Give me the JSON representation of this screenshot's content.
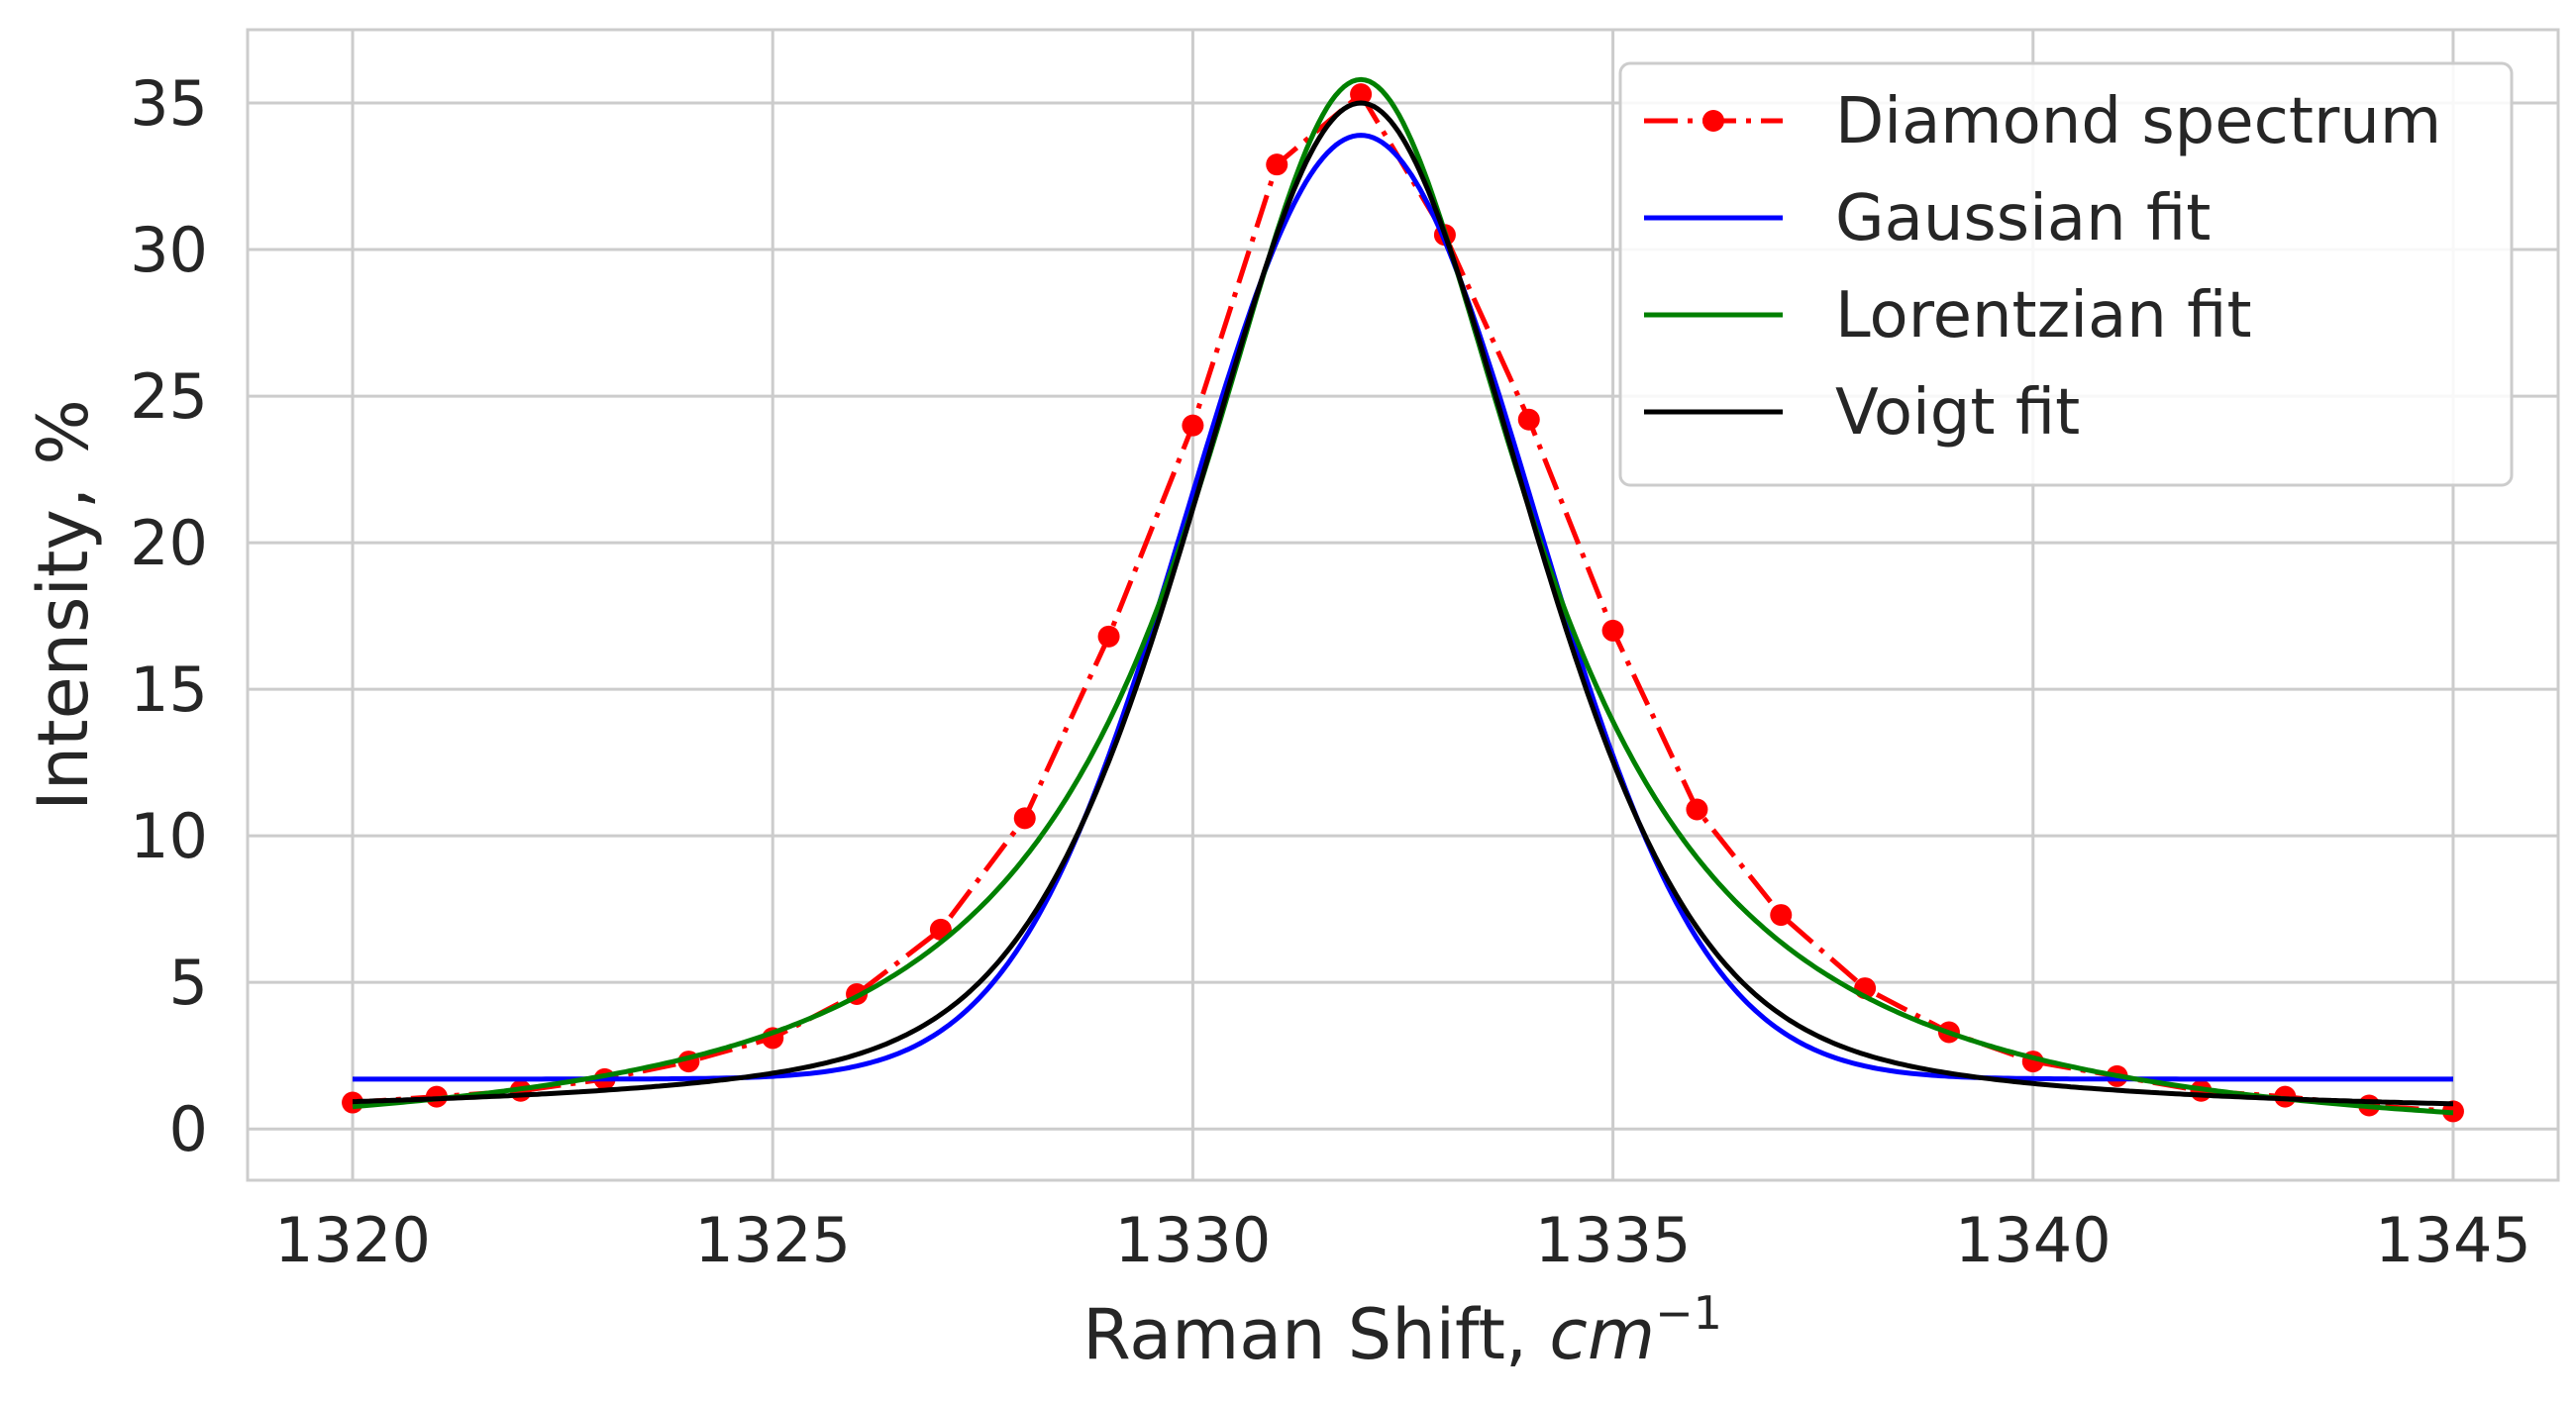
{
  "chart_data": {
    "type": "line",
    "xlabel": "Raman Shift, ",
    "xlabel_unit": "cm",
    "xlabel_exponent": "−1",
    "ylabel": "Intensity, %",
    "xlim": [
      1318.75,
      1346.25
    ],
    "ylim": [
      -1.75,
      37.5
    ],
    "xticks": [
      1320,
      1325,
      1330,
      1335,
      1340,
      1345
    ],
    "yticks": [
      0,
      5,
      10,
      15,
      20,
      25,
      30,
      35
    ],
    "grid": true,
    "legend_position": "top-right",
    "series": [
      {
        "name": "Diamond spectrum",
        "color": "#ff0000",
        "style": "dash-dot-markers",
        "x": [
          1320,
          1321,
          1322,
          1323,
          1324,
          1325,
          1326,
          1327,
          1328,
          1329,
          1330,
          1331,
          1332,
          1333,
          1334,
          1335,
          1336,
          1337,
          1338,
          1339,
          1340,
          1341,
          1342,
          1343,
          1344,
          1345
        ],
        "y": [
          0.9,
          1.1,
          1.3,
          1.7,
          2.3,
          3.1,
          4.6,
          6.8,
          10.6,
          16.8,
          24.0,
          32.9,
          35.3,
          30.5,
          24.2,
          17.0,
          10.9,
          7.3,
          4.8,
          3.3,
          2.3,
          1.8,
          1.3,
          1.1,
          0.8,
          0.6
        ]
      },
      {
        "name": "Gaussian fit",
        "color": "#0000ff",
        "style": "solid",
        "model": "gaussian",
        "params": {
          "amplitude": 32.2,
          "center": 1332.0,
          "sigma": 2.05,
          "offset": 1.7
        }
      },
      {
        "name": "Lorentzian fit",
        "color": "#008000",
        "style": "solid",
        "model": "lorentzian",
        "params": {
          "amplitude": 36.5,
          "center": 1332.0,
          "gamma": 2.45,
          "offset": -0.7
        }
      },
      {
        "name": "Voigt fit",
        "color": "#000000",
        "style": "solid",
        "model": "pseudo-voigt",
        "params": {
          "amplitude": 34.6,
          "center": 1332.0,
          "sigma": 2.0,
          "gamma": 2.4,
          "mix": 0.6,
          "offset": 0.4
        }
      }
    ]
  }
}
